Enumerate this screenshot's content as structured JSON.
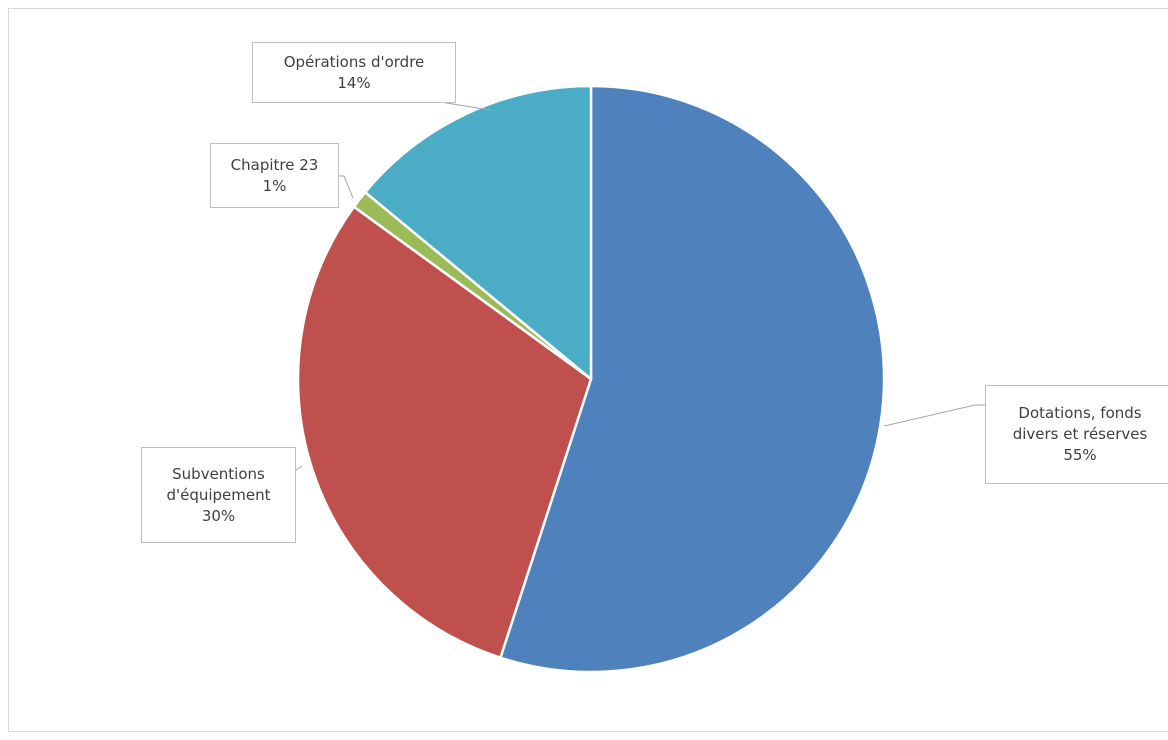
{
  "chart_data": {
    "type": "pie",
    "categories": [
      "Dotations, fonds divers et réserves",
      "Subventions d'équipement",
      "Chapitre 23",
      "Opérations d'ordre"
    ],
    "values": [
      55,
      30,
      1,
      14
    ],
    "value_labels": [
      "55%",
      "30%",
      "1%",
      "14%"
    ],
    "colors": [
      "#4f81bd",
      "#c0504d",
      "#9bbb59",
      "#4bacc6"
    ]
  }
}
